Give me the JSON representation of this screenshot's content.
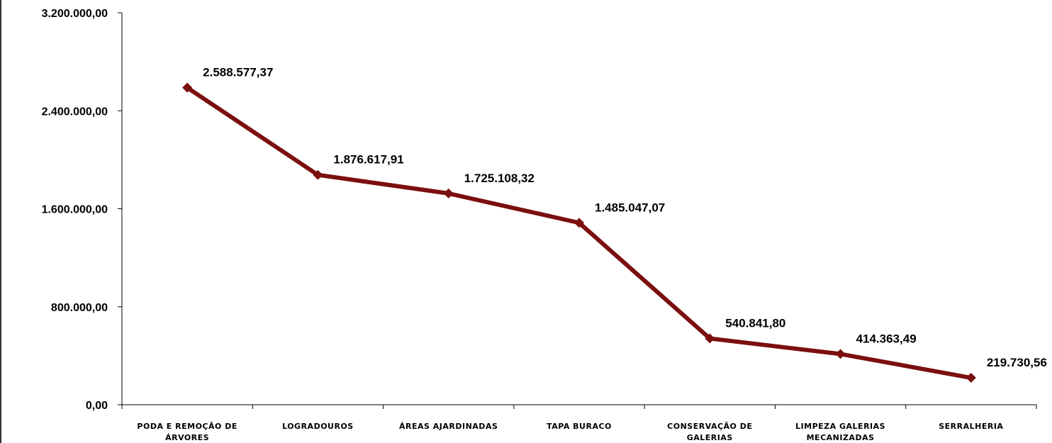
{
  "chart_data": {
    "type": "line",
    "title": "",
    "xlabel": "",
    "ylabel": "",
    "ylim": [
      0,
      3200000
    ],
    "yticks": [
      0,
      800000,
      1600000,
      2400000,
      3200000
    ],
    "ytick_labels": [
      "0,00",
      "800.000,00",
      "1.600.000,00",
      "2.400.000,00",
      "3.200.000,00"
    ],
    "categories": [
      [
        "PODA E REMOÇÃO DE",
        "ÁRVORES"
      ],
      [
        "LOGRADOUROS"
      ],
      [
        "ÁREAS AJARDINADAS"
      ],
      [
        "TAPA BURACO"
      ],
      [
        "CONSERVAÇÃO DE",
        "GALERIAS"
      ],
      [
        "LIMPEZA GALERIAS",
        "MECANIZADAS"
      ],
      [
        "SERRALHERIA"
      ]
    ],
    "series": [
      {
        "values": [
          2588577.37,
          1876617.91,
          1725108.32,
          1485047.07,
          540841.8,
          414363.49,
          219730.56
        ],
        "labels": [
          "2.588.577,37",
          "1.876.617,91",
          "1.725.108,32",
          "1.485.047,07",
          "540.841,80",
          "414.363,49",
          "219.730,56"
        ],
        "color": "#7b0f0f",
        "marker": "diamond"
      }
    ],
    "grid": false,
    "legend": "none"
  }
}
